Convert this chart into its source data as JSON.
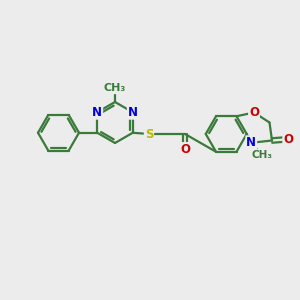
{
  "bg_color": "#ececec",
  "bond_color": "#3a7a3a",
  "N_color": "#0000dd",
  "O_color": "#cc0000",
  "S_color": "#bbbb00",
  "lw": 1.6,
  "fs": 8.5,
  "figsize": [
    3.0,
    3.0
  ],
  "dpi": 100,
  "xlim": [
    0,
    12
  ],
  "ylim": [
    1,
    9
  ]
}
